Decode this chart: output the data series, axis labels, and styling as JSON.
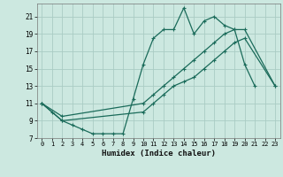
{
  "xlabel": "Humidex (Indice chaleur)",
  "xlim": [
    -0.5,
    23.5
  ],
  "ylim": [
    7,
    22.5
  ],
  "xticks": [
    0,
    1,
    2,
    3,
    4,
    5,
    6,
    7,
    8,
    9,
    10,
    11,
    12,
    13,
    14,
    15,
    16,
    17,
    18,
    19,
    20,
    21,
    22,
    23
  ],
  "yticks": [
    7,
    9,
    11,
    13,
    15,
    17,
    19,
    21
  ],
  "bg_color": "#cce8e0",
  "line_color": "#1a6b5a",
  "grid_color": "#aaccc4",
  "line1_x": [
    0,
    1,
    2,
    3,
    4,
    5,
    6,
    7,
    8,
    9,
    10,
    11,
    12,
    13,
    14,
    15,
    16,
    17,
    18,
    19,
    20,
    21
  ],
  "line1_y": [
    11,
    10,
    9,
    8.5,
    8,
    7.5,
    7.5,
    7.5,
    7.5,
    11.5,
    15.5,
    18.5,
    19.5,
    19.5,
    22,
    19,
    20.5,
    21,
    20,
    19.5,
    15.5,
    13
  ],
  "line2_x": [
    0,
    2,
    10,
    11,
    12,
    13,
    14,
    15,
    16,
    17,
    18,
    19,
    20,
    23
  ],
  "line2_y": [
    11,
    9.5,
    11,
    12,
    13,
    14,
    15,
    16,
    17,
    18,
    19,
    19.5,
    19.5,
    13
  ],
  "line3_x": [
    0,
    2,
    10,
    11,
    12,
    13,
    14,
    15,
    16,
    17,
    18,
    19,
    20,
    23
  ],
  "line3_y": [
    11,
    9,
    10,
    11,
    12,
    13,
    13.5,
    14,
    15,
    16,
    17,
    18,
    18.5,
    13
  ]
}
